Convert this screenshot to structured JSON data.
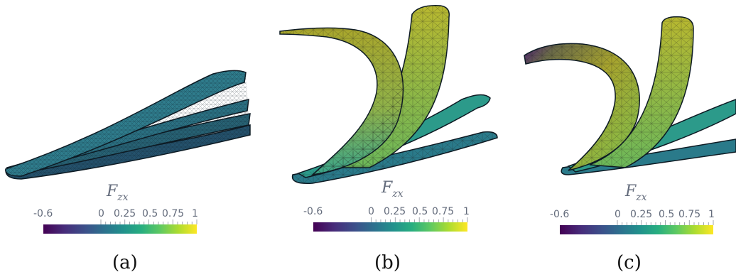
{
  "colormap": {
    "name": "viridis",
    "stops": [
      "#440154",
      "#472d7b",
      "#3b528b",
      "#2c728e",
      "#21918c",
      "#28ae80",
      "#5ec962",
      "#addc30",
      "#fde725"
    ],
    "range": [
      -0.6,
      1
    ]
  },
  "colorbar": {
    "title": "F",
    "title_sub": "zx",
    "tick_labels": [
      "-0.6",
      "0",
      "0.25",
      "0.5",
      "0.75",
      "1"
    ],
    "tick_values": [
      -0.6,
      0,
      0.25,
      0.5,
      0.75,
      1
    ]
  },
  "panels": [
    {
      "caption": "(a)"
    },
    {
      "caption": "(b)"
    },
    {
      "caption": "(c)"
    }
  ],
  "colors": {
    "panel_a_surface": "#2f7c8c",
    "panel_b_arch": "#a9ab2d",
    "panel_b_base": "#2c9a8a",
    "panel_c_tip": "#4b1d74"
  }
}
